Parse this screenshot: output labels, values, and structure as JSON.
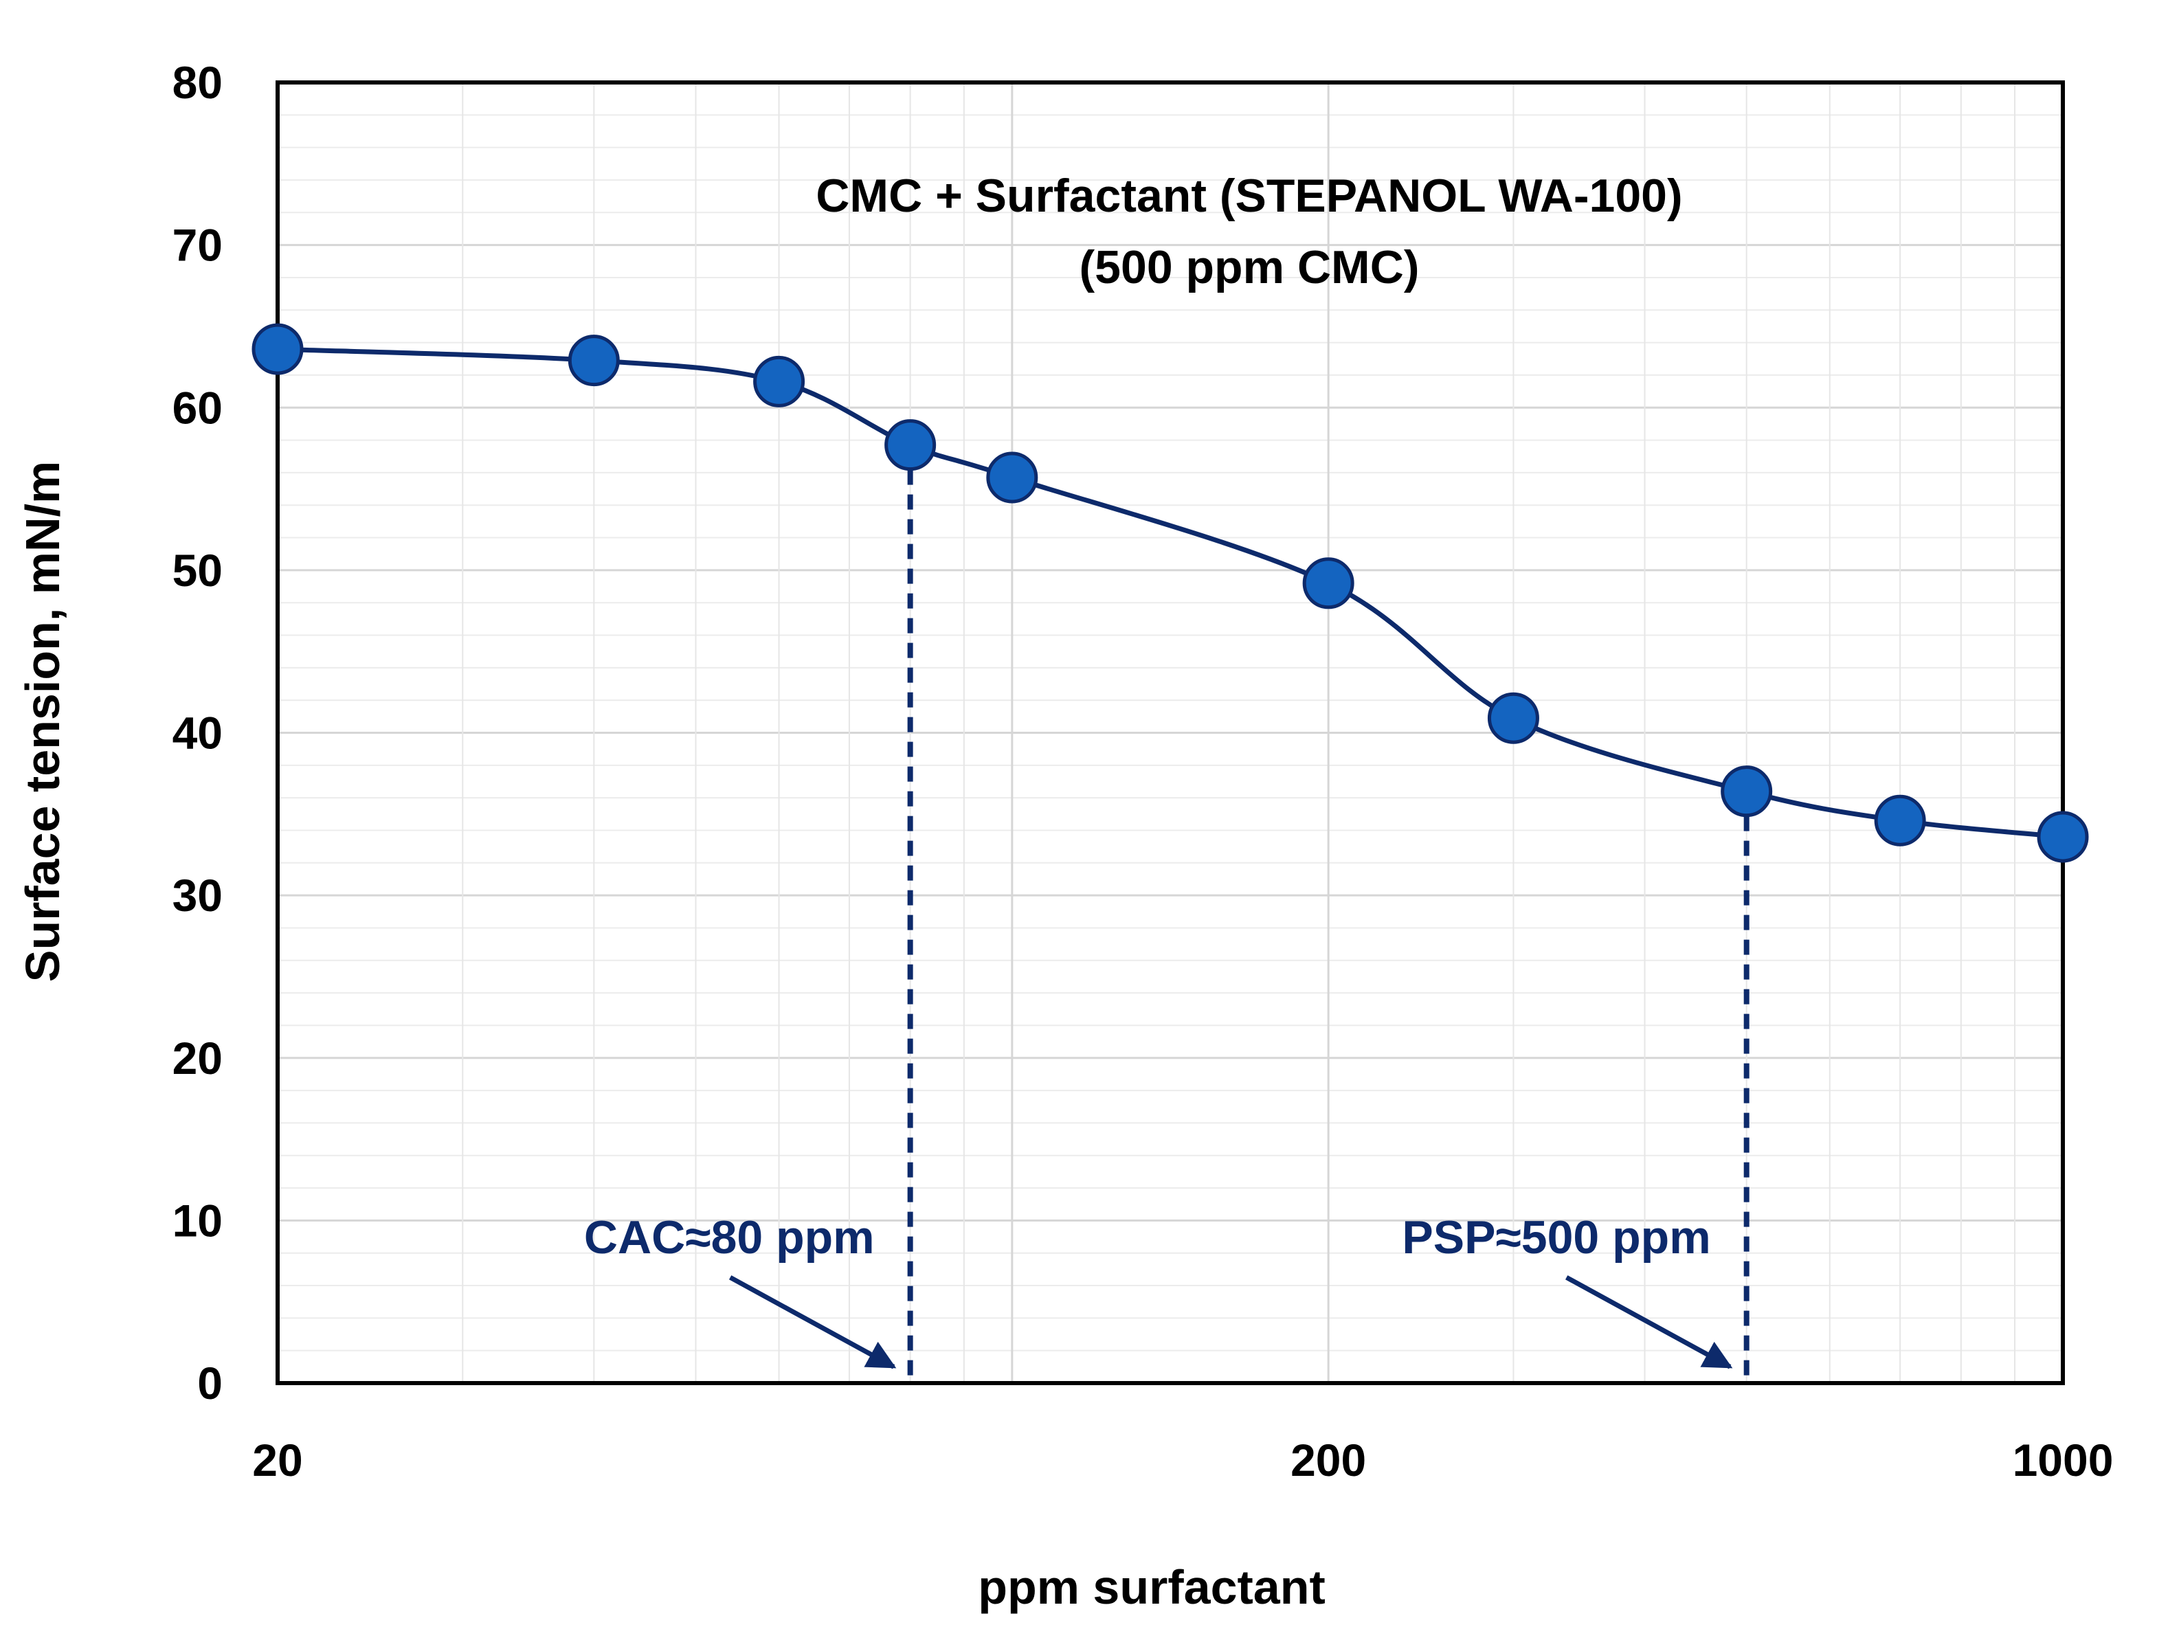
{
  "chart_data": {
    "type": "line",
    "title": "CMC + Surfactant (STEPANOL WA-100)",
    "subtitle": "(500 ppm CMC)",
    "xlabel": "ppm surfactant",
    "ylabel": "Surface tension, mN/m",
    "xscale": "log",
    "xlim": [
      20,
      1000
    ],
    "ylim": [
      0,
      80
    ],
    "x_ticks": [
      20,
      200,
      1000
    ],
    "x_tick_labels": [
      "20",
      "200",
      "1000"
    ],
    "y_ticks": [
      0,
      10,
      20,
      30,
      40,
      50,
      60,
      70,
      80
    ],
    "y_tick_labels": [
      "0",
      "10",
      "20",
      "30",
      "40",
      "50",
      "60",
      "70",
      "80"
    ],
    "grid": true,
    "series": [
      {
        "name": "CMC + Surfactant",
        "x": [
          20,
          40,
          60,
          80,
          100,
          200,
          300,
          500,
          700,
          1000
        ],
        "y": [
          63.6,
          62.9,
          61.6,
          57.7,
          55.7,
          49.2,
          40.9,
          36.4,
          34.6,
          33.6
        ]
      }
    ],
    "annotations": [
      {
        "label": "CAC≈80 ppm",
        "x": 80,
        "y_from": 0,
        "y_to": 57.7
      },
      {
        "label": "PSP≈500 ppm",
        "x": 500,
        "y_from": 0,
        "y_to": 36.4
      }
    ],
    "colors": {
      "line": "#0d2a6b",
      "marker_fill": "#1464c0",
      "marker_edge": "#0d2a6b",
      "annotation": "#0d2a6b",
      "grid": "#d6d6d6",
      "axis": "#000000"
    }
  }
}
